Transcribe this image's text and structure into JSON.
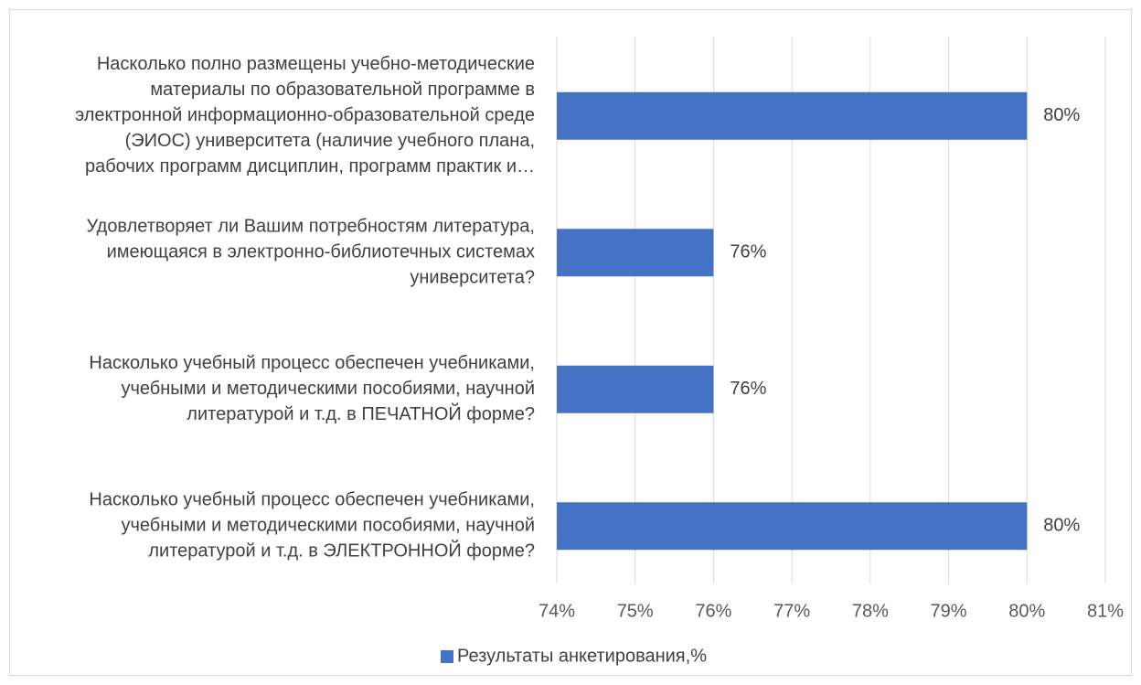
{
  "chart_data": {
    "type": "bar",
    "orientation": "horizontal",
    "categories": [
      [
        "Насколько полно размещены учебно-методические",
        "материалы по образовательной программе в",
        "электронной информационно-образовательной среде",
        "(ЭИОС) университета (наличие учебного плана,",
        "рабочих программ дисциплин, программ практик и…"
      ],
      [
        "Удовлетворяет ли Вашим потребностям литература,",
        "имеющаяся в электронно-библиотечных системах",
        "университета?"
      ],
      [
        "Насколько учебный процесс обеспечен учебниками,",
        "учебными и методическими пособиями, научной",
        "литературой и т.д. в ПЕЧАТНОЙ форме?"
      ],
      [
        "Насколько учебный процесс обеспечен учебниками,",
        "учебными и методическими пособиями, научной",
        "литературой и т.д. в ЭЛЕКТРОННОЙ форме?"
      ]
    ],
    "series": [
      {
        "name": "Результаты анкетирования,%",
        "values": [
          80,
          76,
          76,
          80
        ],
        "data_labels": [
          "80%",
          "76%",
          "76%",
          "80%"
        ],
        "color": "#4472C4"
      }
    ],
    "xlim": [
      74,
      81
    ],
    "x_ticks": [
      "74%",
      "75%",
      "76%",
      "77%",
      "78%",
      "79%",
      "80%",
      "81%"
    ],
    "grid": true,
    "legend_position": "bottom"
  }
}
